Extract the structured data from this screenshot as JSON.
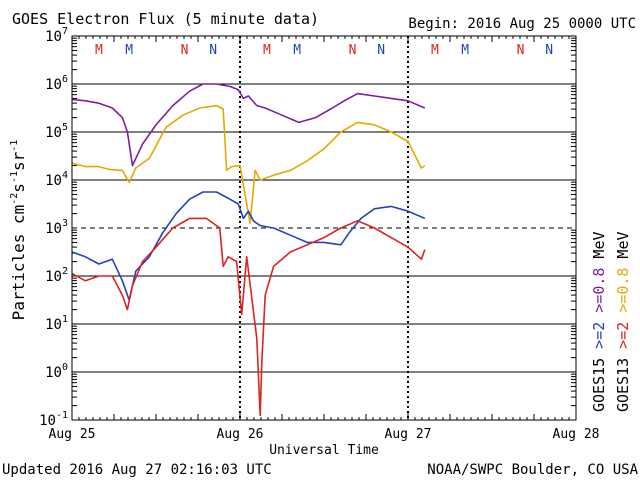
{
  "chart_data": {
    "type": "line",
    "title": "GOES Electron Flux (5 minute data)",
    "begin_label": "Begin: 2016 Aug 25 0000 UTC",
    "xlabel": "Universal Time",
    "ylabel": "Particles cm-2s-1sr-1",
    "ylabel_parts": {
      "main": "Particles cm",
      "e1": "-2",
      "s": "s",
      "e2": "-1",
      "sr": "sr",
      "e3": "-1"
    },
    "yscale": "log",
    "ylim_exp": [
      -1,
      7
    ],
    "xlim": [
      0,
      3
    ],
    "y_ticks": [
      {
        "base": "10",
        "exp": "7",
        "value": 7
      },
      {
        "base": "10",
        "exp": "6",
        "value": 6
      },
      {
        "base": "10",
        "exp": "5",
        "value": 5
      },
      {
        "base": "10",
        "exp": "4",
        "value": 4
      },
      {
        "base": "10",
        "exp": "3",
        "value": 3
      },
      {
        "base": "10",
        "exp": "2",
        "value": 2
      },
      {
        "base": "10",
        "exp": "1",
        "value": 1
      },
      {
        "base": "10",
        "exp": "0",
        "value": 0
      },
      {
        "base": "10",
        "exp": "-1",
        "value": -1
      }
    ],
    "x_ticks": [
      {
        "label": "Aug 25",
        "value": 0
      },
      {
        "label": "Aug 26",
        "value": 1
      },
      {
        "label": "Aug 27",
        "value": 2
      },
      {
        "label": "Aug 28",
        "value": 3
      }
    ],
    "threshold_exp": 3,
    "mn_markers": [
      {
        "label": "M",
        "day": 0.16,
        "color": "#dd2222"
      },
      {
        "label": "M",
        "day": 0.34,
        "color": "#2244bb"
      },
      {
        "label": "N",
        "day": 0.67,
        "color": "#dd2222"
      },
      {
        "label": "N",
        "day": 0.84,
        "color": "#2244bb"
      },
      {
        "label": "M",
        "day": 1.16,
        "color": "#dd2222"
      },
      {
        "label": "M",
        "day": 1.34,
        "color": "#2244bb"
      },
      {
        "label": "N",
        "day": 1.67,
        "color": "#dd2222"
      },
      {
        "label": "N",
        "day": 1.84,
        "color": "#2244bb"
      },
      {
        "label": "M",
        "day": 2.16,
        "color": "#dd2222"
      },
      {
        "label": "M",
        "day": 2.34,
        "color": "#2244bb"
      },
      {
        "label": "N",
        "day": 2.67,
        "color": "#dd2222"
      },
      {
        "label": "N",
        "day": 2.84,
        "color": "#2244bb"
      }
    ],
    "legend": {
      "groups": [
        {
          "name": "GOES15",
          "entries": [
            {
              "label": ">=2",
              "unit": "",
              "color": "#2244bb"
            },
            {
              "label": ">=0.8",
              "unit": "MeV",
              "color": "#7a1fa2"
            }
          ]
        },
        {
          "name": "GOES13",
          "entries": [
            {
              "label": ">=2",
              "unit": "",
              "color": "#dd2222"
            },
            {
              "label": ">=0.8",
              "unit": "MeV",
              "color": "#e6a800"
            }
          ]
        }
      ]
    },
    "series": [
      {
        "name": "GOES15 >=0.8 MeV",
        "color": "#7a1fa2",
        "points": [
          [
            0,
            5.68
          ],
          [
            0.08,
            5.65
          ],
          [
            0.16,
            5.6
          ],
          [
            0.24,
            5.5
          ],
          [
            0.3,
            5.3
          ],
          [
            0.33,
            5.0
          ],
          [
            0.36,
            4.3
          ],
          [
            0.38,
            4.45
          ],
          [
            0.42,
            4.75
          ],
          [
            0.5,
            5.15
          ],
          [
            0.6,
            5.55
          ],
          [
            0.7,
            5.85
          ],
          [
            0.78,
            6.0
          ],
          [
            0.86,
            6.0
          ],
          [
            0.94,
            5.95
          ],
          [
            0.99,
            5.88
          ],
          [
            1.02,
            5.7
          ],
          [
            1.05,
            5.75
          ],
          [
            1.1,
            5.55
          ],
          [
            1.15,
            5.5
          ],
          [
            1.25,
            5.35
          ],
          [
            1.35,
            5.2
          ],
          [
            1.45,
            5.3
          ],
          [
            1.55,
            5.5
          ],
          [
            1.62,
            5.65
          ],
          [
            1.7,
            5.8
          ],
          [
            1.8,
            5.75
          ],
          [
            1.9,
            5.7
          ],
          [
            2.0,
            5.65
          ],
          [
            2.1,
            5.5
          ]
        ]
      },
      {
        "name": "GOES13 >=0.8 MeV",
        "color": "#e6a800",
        "points": [
          [
            0,
            4.35
          ],
          [
            0.08,
            4.28
          ],
          [
            0.16,
            4.28
          ],
          [
            0.22,
            4.22
          ],
          [
            0.3,
            4.2
          ],
          [
            0.34,
            3.95
          ],
          [
            0.38,
            4.25
          ],
          [
            0.46,
            4.45
          ],
          [
            0.56,
            5.1
          ],
          [
            0.66,
            5.35
          ],
          [
            0.76,
            5.5
          ],
          [
            0.86,
            5.55
          ],
          [
            0.9,
            5.48
          ],
          [
            0.92,
            4.2
          ],
          [
            0.95,
            4.28
          ],
          [
            1.0,
            4.3
          ],
          [
            1.06,
            3.1
          ],
          [
            1.09,
            4.2
          ],
          [
            1.12,
            4.0
          ],
          [
            1.2,
            4.1
          ],
          [
            1.3,
            4.2
          ],
          [
            1.4,
            4.4
          ],
          [
            1.5,
            4.65
          ],
          [
            1.6,
            5.0
          ],
          [
            1.7,
            5.2
          ],
          [
            1.8,
            5.15
          ],
          [
            1.9,
            5.0
          ],
          [
            2.0,
            4.8
          ],
          [
            2.08,
            4.25
          ],
          [
            2.1,
            4.3
          ]
        ]
      },
      {
        "name": "GOES15 >=2 MeV",
        "color": "#2244bb",
        "points": [
          [
            0,
            2.5
          ],
          [
            0.08,
            2.4
          ],
          [
            0.16,
            2.25
          ],
          [
            0.24,
            2.35
          ],
          [
            0.3,
            1.9
          ],
          [
            0.34,
            1.5
          ],
          [
            0.38,
            2.1
          ],
          [
            0.46,
            2.4
          ],
          [
            0.54,
            2.9
          ],
          [
            0.62,
            3.3
          ],
          [
            0.7,
            3.6
          ],
          [
            0.78,
            3.75
          ],
          [
            0.86,
            3.75
          ],
          [
            0.94,
            3.6
          ],
          [
            0.99,
            3.5
          ],
          [
            1.02,
            3.2
          ],
          [
            1.05,
            3.35
          ],
          [
            1.08,
            3.15
          ],
          [
            1.12,
            3.05
          ],
          [
            1.2,
            3.0
          ],
          [
            1.3,
            2.85
          ],
          [
            1.4,
            2.7
          ],
          [
            1.5,
            2.7
          ],
          [
            1.6,
            2.65
          ],
          [
            1.65,
            2.9
          ],
          [
            1.72,
            3.2
          ],
          [
            1.8,
            3.4
          ],
          [
            1.9,
            3.45
          ],
          [
            2.0,
            3.35
          ],
          [
            2.1,
            3.2
          ]
        ]
      },
      {
        "name": "GOES13 >=2 MeV",
        "color": "#dd2222",
        "points": [
          [
            0,
            2.05
          ],
          [
            0.08,
            1.9
          ],
          [
            0.16,
            2.0
          ],
          [
            0.24,
            2.0
          ],
          [
            0.3,
            1.6
          ],
          [
            0.33,
            1.3
          ],
          [
            0.36,
            1.8
          ],
          [
            0.42,
            2.3
          ],
          [
            0.5,
            2.6
          ],
          [
            0.6,
            3.0
          ],
          [
            0.7,
            3.2
          ],
          [
            0.8,
            3.2
          ],
          [
            0.88,
            3.0
          ],
          [
            0.9,
            2.2
          ],
          [
            0.93,
            2.4
          ],
          [
            0.98,
            2.3
          ],
          [
            1.01,
            1.2
          ],
          [
            1.04,
            2.4
          ],
          [
            1.1,
            0.7
          ],
          [
            1.12,
            -0.9
          ],
          [
            1.13,
            0.2
          ],
          [
            1.15,
            1.6
          ],
          [
            1.2,
            2.2
          ],
          [
            1.3,
            2.5
          ],
          [
            1.4,
            2.65
          ],
          [
            1.5,
            2.8
          ],
          [
            1.6,
            3.0
          ],
          [
            1.7,
            3.15
          ],
          [
            1.8,
            3.0
          ],
          [
            1.9,
            2.8
          ],
          [
            2.0,
            2.6
          ],
          [
            2.08,
            2.35
          ],
          [
            2.1,
            2.55
          ]
        ]
      }
    ],
    "footer_left": "Updated 2016 Aug 27 02:16:03 UTC",
    "footer_right": "NOAA/SWPC Boulder, CO USA"
  }
}
